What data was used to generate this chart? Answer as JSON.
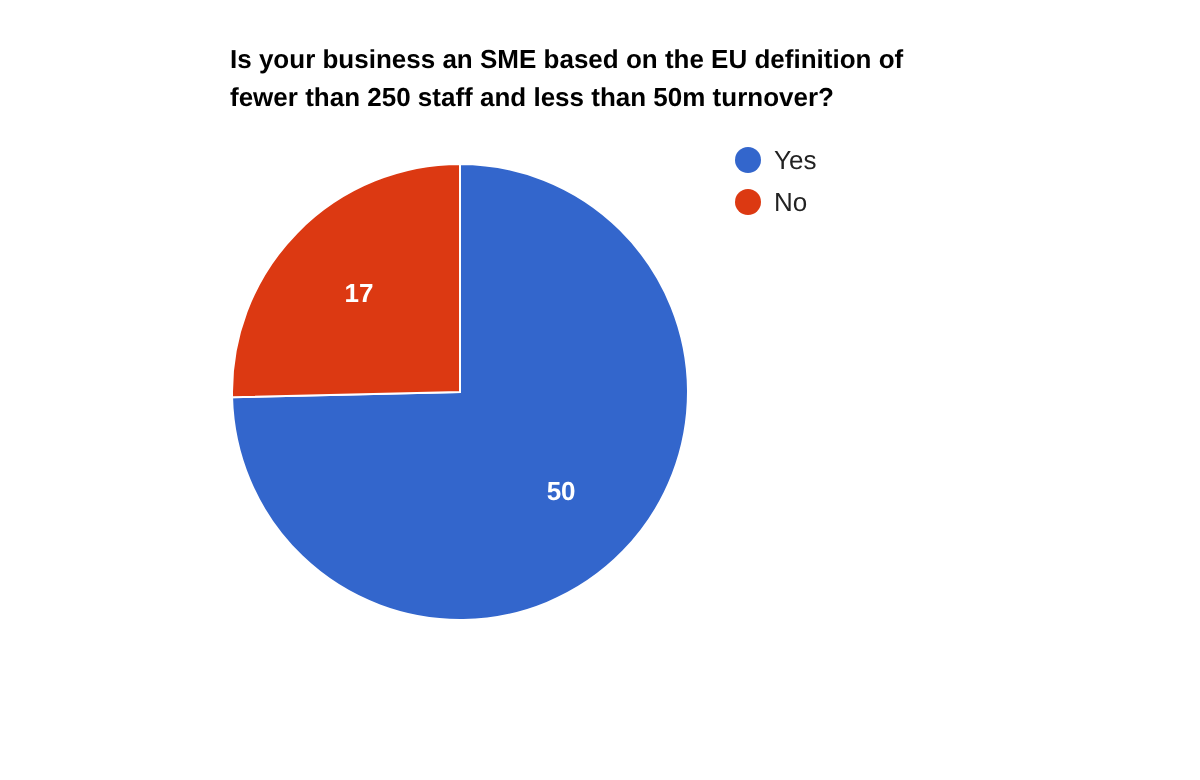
{
  "chart_data": {
    "type": "pie",
    "title": "Is your business an SME based on the EU definition of fewer than 250 staff and less than 50m turnover?",
    "categories": [
      "Yes",
      "No"
    ],
    "values": [
      50,
      17
    ],
    "colors": [
      "#3366cc",
      "#dc3912"
    ],
    "data_labels": true,
    "legend": "right"
  }
}
